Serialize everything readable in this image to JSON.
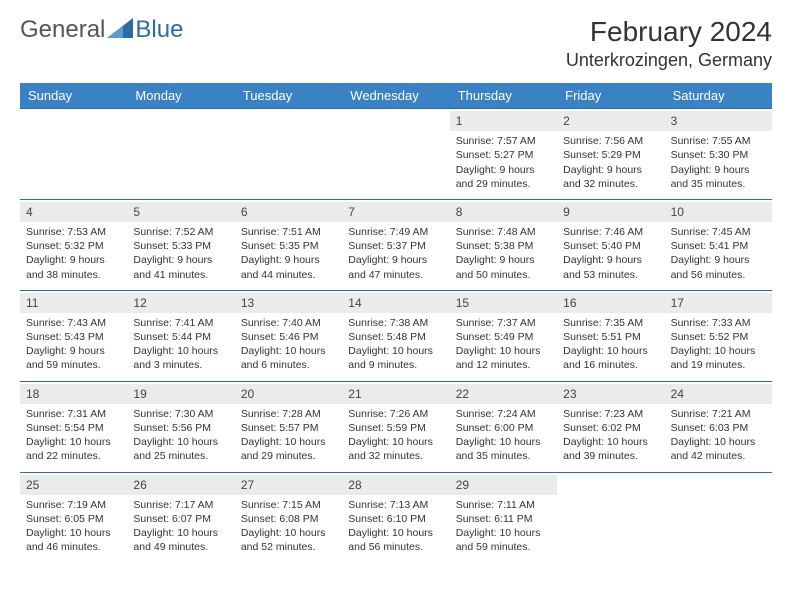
{
  "logo": {
    "text_gray": "General",
    "text_blue": "Blue"
  },
  "header": {
    "month_title": "February 2024",
    "location": "Unterkrozingen, Germany"
  },
  "colors": {
    "header_bg": "#3b82c4",
    "header_text": "#ffffff",
    "week_border": "#2b6ca3",
    "date_bg": "#ebebeb",
    "body_text": "#333333",
    "logo_gray": "#555555",
    "logo_blue": "#2b6ca3"
  },
  "day_names": [
    "Sunday",
    "Monday",
    "Tuesday",
    "Wednesday",
    "Thursday",
    "Friday",
    "Saturday"
  ],
  "weeks": [
    [
      null,
      null,
      null,
      null,
      {
        "d": "1",
        "sunrise": "Sunrise: 7:57 AM",
        "sunset": "Sunset: 5:27 PM",
        "dl1": "Daylight: 9 hours",
        "dl2": "and 29 minutes."
      },
      {
        "d": "2",
        "sunrise": "Sunrise: 7:56 AM",
        "sunset": "Sunset: 5:29 PM",
        "dl1": "Daylight: 9 hours",
        "dl2": "and 32 minutes."
      },
      {
        "d": "3",
        "sunrise": "Sunrise: 7:55 AM",
        "sunset": "Sunset: 5:30 PM",
        "dl1": "Daylight: 9 hours",
        "dl2": "and 35 minutes."
      }
    ],
    [
      {
        "d": "4",
        "sunrise": "Sunrise: 7:53 AM",
        "sunset": "Sunset: 5:32 PM",
        "dl1": "Daylight: 9 hours",
        "dl2": "and 38 minutes."
      },
      {
        "d": "5",
        "sunrise": "Sunrise: 7:52 AM",
        "sunset": "Sunset: 5:33 PM",
        "dl1": "Daylight: 9 hours",
        "dl2": "and 41 minutes."
      },
      {
        "d": "6",
        "sunrise": "Sunrise: 7:51 AM",
        "sunset": "Sunset: 5:35 PM",
        "dl1": "Daylight: 9 hours",
        "dl2": "and 44 minutes."
      },
      {
        "d": "7",
        "sunrise": "Sunrise: 7:49 AM",
        "sunset": "Sunset: 5:37 PM",
        "dl1": "Daylight: 9 hours",
        "dl2": "and 47 minutes."
      },
      {
        "d": "8",
        "sunrise": "Sunrise: 7:48 AM",
        "sunset": "Sunset: 5:38 PM",
        "dl1": "Daylight: 9 hours",
        "dl2": "and 50 minutes."
      },
      {
        "d": "9",
        "sunrise": "Sunrise: 7:46 AM",
        "sunset": "Sunset: 5:40 PM",
        "dl1": "Daylight: 9 hours",
        "dl2": "and 53 minutes."
      },
      {
        "d": "10",
        "sunrise": "Sunrise: 7:45 AM",
        "sunset": "Sunset: 5:41 PM",
        "dl1": "Daylight: 9 hours",
        "dl2": "and 56 minutes."
      }
    ],
    [
      {
        "d": "11",
        "sunrise": "Sunrise: 7:43 AM",
        "sunset": "Sunset: 5:43 PM",
        "dl1": "Daylight: 9 hours",
        "dl2": "and 59 minutes."
      },
      {
        "d": "12",
        "sunrise": "Sunrise: 7:41 AM",
        "sunset": "Sunset: 5:44 PM",
        "dl1": "Daylight: 10 hours",
        "dl2": "and 3 minutes."
      },
      {
        "d": "13",
        "sunrise": "Sunrise: 7:40 AM",
        "sunset": "Sunset: 5:46 PM",
        "dl1": "Daylight: 10 hours",
        "dl2": "and 6 minutes."
      },
      {
        "d": "14",
        "sunrise": "Sunrise: 7:38 AM",
        "sunset": "Sunset: 5:48 PM",
        "dl1": "Daylight: 10 hours",
        "dl2": "and 9 minutes."
      },
      {
        "d": "15",
        "sunrise": "Sunrise: 7:37 AM",
        "sunset": "Sunset: 5:49 PM",
        "dl1": "Daylight: 10 hours",
        "dl2": "and 12 minutes."
      },
      {
        "d": "16",
        "sunrise": "Sunrise: 7:35 AM",
        "sunset": "Sunset: 5:51 PM",
        "dl1": "Daylight: 10 hours",
        "dl2": "and 16 minutes."
      },
      {
        "d": "17",
        "sunrise": "Sunrise: 7:33 AM",
        "sunset": "Sunset: 5:52 PM",
        "dl1": "Daylight: 10 hours",
        "dl2": "and 19 minutes."
      }
    ],
    [
      {
        "d": "18",
        "sunrise": "Sunrise: 7:31 AM",
        "sunset": "Sunset: 5:54 PM",
        "dl1": "Daylight: 10 hours",
        "dl2": "and 22 minutes."
      },
      {
        "d": "19",
        "sunrise": "Sunrise: 7:30 AM",
        "sunset": "Sunset: 5:56 PM",
        "dl1": "Daylight: 10 hours",
        "dl2": "and 25 minutes."
      },
      {
        "d": "20",
        "sunrise": "Sunrise: 7:28 AM",
        "sunset": "Sunset: 5:57 PM",
        "dl1": "Daylight: 10 hours",
        "dl2": "and 29 minutes."
      },
      {
        "d": "21",
        "sunrise": "Sunrise: 7:26 AM",
        "sunset": "Sunset: 5:59 PM",
        "dl1": "Daylight: 10 hours",
        "dl2": "and 32 minutes."
      },
      {
        "d": "22",
        "sunrise": "Sunrise: 7:24 AM",
        "sunset": "Sunset: 6:00 PM",
        "dl1": "Daylight: 10 hours",
        "dl2": "and 35 minutes."
      },
      {
        "d": "23",
        "sunrise": "Sunrise: 7:23 AM",
        "sunset": "Sunset: 6:02 PM",
        "dl1": "Daylight: 10 hours",
        "dl2": "and 39 minutes."
      },
      {
        "d": "24",
        "sunrise": "Sunrise: 7:21 AM",
        "sunset": "Sunset: 6:03 PM",
        "dl1": "Daylight: 10 hours",
        "dl2": "and 42 minutes."
      }
    ],
    [
      {
        "d": "25",
        "sunrise": "Sunrise: 7:19 AM",
        "sunset": "Sunset: 6:05 PM",
        "dl1": "Daylight: 10 hours",
        "dl2": "and 46 minutes."
      },
      {
        "d": "26",
        "sunrise": "Sunrise: 7:17 AM",
        "sunset": "Sunset: 6:07 PM",
        "dl1": "Daylight: 10 hours",
        "dl2": "and 49 minutes."
      },
      {
        "d": "27",
        "sunrise": "Sunrise: 7:15 AM",
        "sunset": "Sunset: 6:08 PM",
        "dl1": "Daylight: 10 hours",
        "dl2": "and 52 minutes."
      },
      {
        "d": "28",
        "sunrise": "Sunrise: 7:13 AM",
        "sunset": "Sunset: 6:10 PM",
        "dl1": "Daylight: 10 hours",
        "dl2": "and 56 minutes."
      },
      {
        "d": "29",
        "sunrise": "Sunrise: 7:11 AM",
        "sunset": "Sunset: 6:11 PM",
        "dl1": "Daylight: 10 hours",
        "dl2": "and 59 minutes."
      },
      null,
      null
    ]
  ]
}
